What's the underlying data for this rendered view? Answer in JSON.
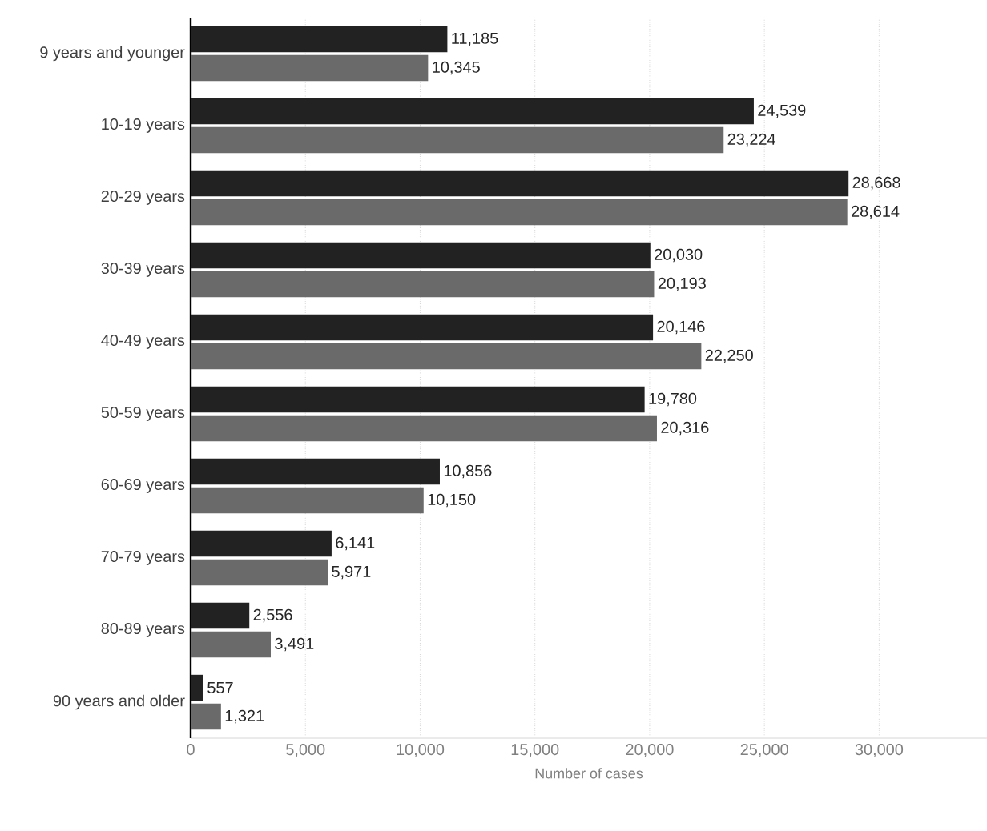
{
  "chart_data": {
    "type": "bar",
    "orientation": "horizontal",
    "xlabel": "Number of cases",
    "categories": [
      "9 years and younger",
      "10-19 years",
      "20-29 years",
      "30-39 years",
      "40-49 years",
      "50-59 years",
      "60-69 years",
      "70-79 years",
      "80-89 years",
      "90 years and older"
    ],
    "series": [
      {
        "color": "#222222",
        "values": [
          11185,
          24539,
          28668,
          20030,
          20146,
          19780,
          10856,
          6141,
          2556,
          557
        ],
        "value_labels": [
          "11,185",
          "24,539",
          "28,668",
          "20,030",
          "20,146",
          "19,780",
          "10,856",
          "6,141",
          "2,556",
          "557"
        ]
      },
      {
        "color": "#6a6a6a",
        "values": [
          10345,
          23224,
          28614,
          20193,
          22250,
          20316,
          10150,
          5971,
          3491,
          1321
        ],
        "value_labels": [
          "10,345",
          "23,224",
          "28,614",
          "20,193",
          "22,250",
          "20,316",
          "10,150",
          "5,971",
          "3,491",
          "1,321"
        ]
      }
    ],
    "xlim": [
      0,
      34700
    ],
    "xticks": [
      0,
      {
        "value": 5000,
        "label": "5,000"
      },
      {
        "value": 10000,
        "label": "10,000"
      },
      {
        "value": 15000,
        "label": "15,000"
      },
      {
        "value": 20000,
        "label": "20,000"
      },
      {
        "value": 25000,
        "label": "25,000"
      },
      {
        "value": 30000,
        "label": "30,000"
      }
    ],
    "grid": "x"
  }
}
